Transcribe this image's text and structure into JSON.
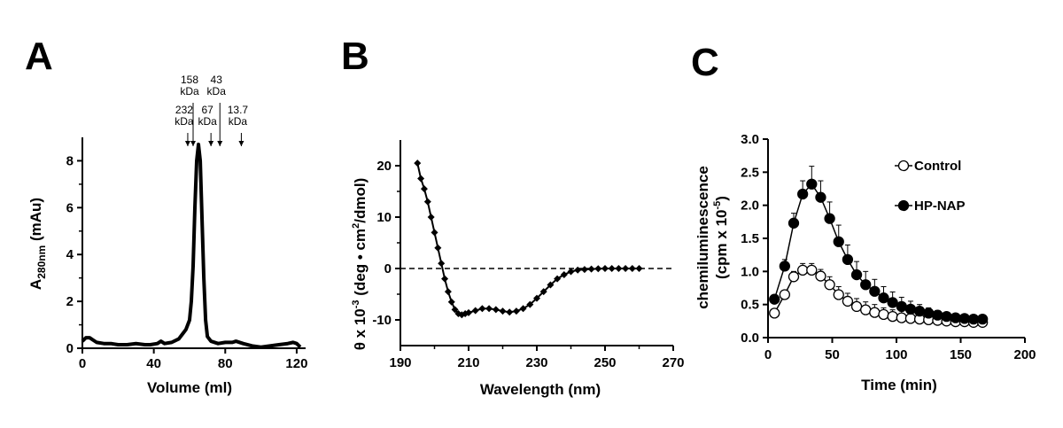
{
  "panels": {
    "a": {
      "letter": "A"
    },
    "b": {
      "letter": "B"
    },
    "c": {
      "letter": "C"
    }
  },
  "chart_data": [
    {
      "id": "A",
      "type": "line",
      "title": "",
      "xlabel": "Volume (ml)",
      "ylabel_main": "A",
      "ylabel_sub": "280nm",
      "ylabel_rest": " (mAu)",
      "xlim": [
        0,
        125
      ],
      "ylim": [
        0,
        9
      ],
      "xticks": [
        0,
        40,
        80,
        120
      ],
      "yticks": [
        0,
        2,
        4,
        6,
        8
      ],
      "grid": false,
      "markers": [
        {
          "line1": "232",
          "line2": "kDa",
          "x": 59
        },
        {
          "line1": "158",
          "line2": "kDa",
          "x": 62
        },
        {
          "line1": "67",
          "line2": "kDa",
          "x": 72
        },
        {
          "line1": "43",
          "line2": "kDa",
          "x": 77
        },
        {
          "line1": "13.7",
          "line2": "kDa",
          "x": 89
        }
      ],
      "series": [
        {
          "name": "trace",
          "x": [
            0,
            2,
            4,
            6,
            8,
            12,
            16,
            20,
            25,
            30,
            35,
            38,
            42,
            44,
            46,
            50,
            54,
            56,
            58,
            60,
            61,
            62,
            63,
            64,
            65,
            66,
            67,
            68,
            69,
            70,
            72,
            76,
            80,
            84,
            86,
            90,
            95,
            100,
            105,
            110,
            115,
            118,
            120,
            122
          ],
          "y": [
            0.3,
            0.45,
            0.45,
            0.35,
            0.25,
            0.2,
            0.2,
            0.15,
            0.15,
            0.2,
            0.15,
            0.15,
            0.2,
            0.3,
            0.2,
            0.25,
            0.4,
            0.6,
            0.8,
            1.2,
            2.0,
            3.5,
            6.0,
            8.0,
            8.7,
            8.0,
            5.5,
            3.0,
            1.2,
            0.5,
            0.3,
            0.2,
            0.25,
            0.25,
            0.3,
            0.2,
            0.1,
            0.05,
            0.1,
            0.15,
            0.2,
            0.25,
            0.2,
            0.05
          ]
        }
      ]
    },
    {
      "id": "B",
      "type": "line",
      "title": "",
      "xlabel": "Wavelength (nm)",
      "ylabel_a": "θ x 10",
      "ylabel_sup1": "-3",
      "ylabel_b": " (deg • cm",
      "ylabel_sup2": "2",
      "ylabel_c": "/dmol)",
      "xlim": [
        190,
        270
      ],
      "ylim": [
        -15,
        25
      ],
      "xticks": [
        190,
        210,
        230,
        250,
        270
      ],
      "yticks": [
        -10,
        0,
        10,
        20
      ],
      "reference_line": 0,
      "grid": false,
      "series": [
        {
          "name": "CD spectrum",
          "x": [
            195,
            196,
            197,
            198,
            199,
            200,
            201,
            202,
            203,
            204,
            205,
            206,
            207,
            208,
            209,
            210,
            212,
            214,
            216,
            218,
            220,
            222,
            224,
            226,
            228,
            230,
            232,
            234,
            236,
            238,
            240,
            242,
            244,
            246,
            248,
            250,
            252,
            254,
            256,
            258,
            260
          ],
          "y": [
            20.5,
            17.5,
            15.5,
            13.0,
            10.0,
            7.0,
            4.0,
            1.0,
            -2.0,
            -4.5,
            -6.5,
            -8.0,
            -8.8,
            -9.0,
            -8.8,
            -8.6,
            -8.2,
            -7.8,
            -7.8,
            -8.0,
            -8.3,
            -8.5,
            -8.3,
            -7.8,
            -7.0,
            -5.8,
            -4.5,
            -3.2,
            -2.0,
            -1.2,
            -0.6,
            -0.3,
            -0.2,
            -0.1,
            -0.05,
            0.0,
            0.0,
            0.0,
            0.0,
            0.0,
            0.0
          ]
        }
      ]
    },
    {
      "id": "C",
      "type": "line",
      "title": "",
      "xlabel": "Time (min)",
      "ylabel_line1": "chemiluminescence",
      "ylabel_line2a": "(cpm x 10",
      "ylabel_line2sup": "-5",
      "ylabel_line2b": ")",
      "xlim": [
        0,
        200
      ],
      "ylim": [
        0,
        3.0
      ],
      "xticks": [
        0,
        50,
        100,
        150,
        200
      ],
      "yticks": [
        0.0,
        0.5,
        1.0,
        1.5,
        2.0,
        2.5,
        3.0
      ],
      "grid": false,
      "legend_position": "top-right",
      "x": [
        5,
        13,
        20,
        27,
        34,
        41,
        48,
        55,
        62,
        69,
        76,
        83,
        90,
        97,
        104,
        111,
        118,
        125,
        132,
        139,
        146,
        153,
        160,
        167
      ],
      "series": [
        {
          "name": "Control",
          "marker": "open-circle",
          "values": [
            0.37,
            0.65,
            0.92,
            1.02,
            1.02,
            0.93,
            0.8,
            0.65,
            0.55,
            0.47,
            0.42,
            0.38,
            0.35,
            0.32,
            0.3,
            0.29,
            0.28,
            0.27,
            0.26,
            0.25,
            0.24,
            0.24,
            0.23,
            0.23
          ],
          "errors": [
            0.03,
            0.05,
            0.08,
            0.1,
            0.1,
            0.1,
            0.12,
            0.12,
            0.12,
            0.12,
            0.12,
            0.12,
            0.1,
            0.1,
            0.1,
            0.08,
            0.08,
            0.06,
            0.05,
            0.05,
            0.04,
            0.04,
            0.03,
            0.03
          ]
        },
        {
          "name": "HP-NAP",
          "marker": "filled-circle",
          "values": [
            0.58,
            1.08,
            1.73,
            2.17,
            2.32,
            2.12,
            1.8,
            1.45,
            1.18,
            0.95,
            0.8,
            0.7,
            0.6,
            0.53,
            0.47,
            0.43,
            0.4,
            0.37,
            0.34,
            0.32,
            0.3,
            0.29,
            0.28,
            0.28
          ],
          "errors": [
            0.05,
            0.1,
            0.15,
            0.2,
            0.27,
            0.25,
            0.25,
            0.25,
            0.22,
            0.2,
            0.2,
            0.18,
            0.17,
            0.16,
            0.14,
            0.12,
            0.1,
            0.08,
            0.07,
            0.06,
            0.05,
            0.04,
            0.04,
            0.03
          ]
        }
      ]
    }
  ]
}
